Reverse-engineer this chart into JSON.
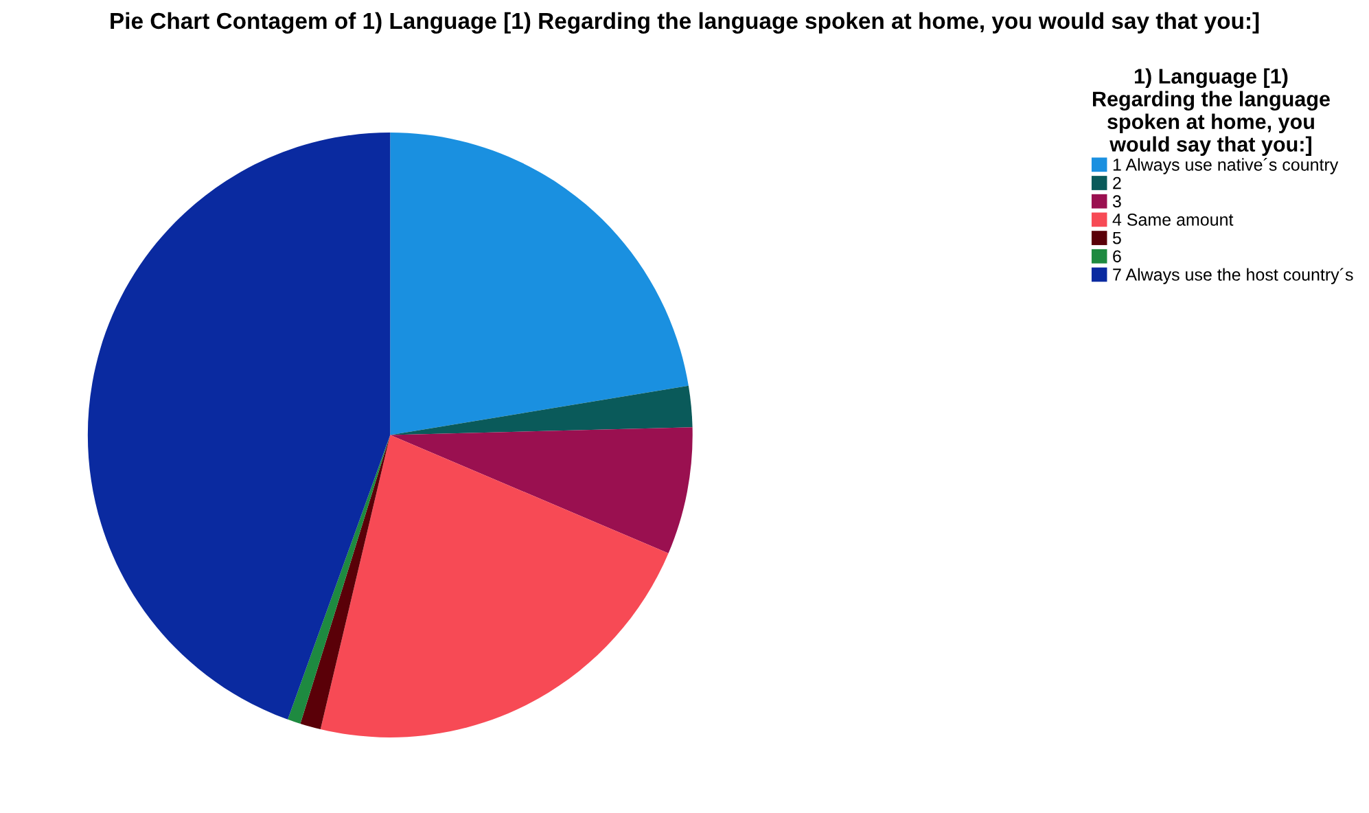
{
  "chart_data": {
    "type": "pie",
    "title": "Pie Chart Contagem of 1) Language [1) Regarding the language spoken at home, you would say that you:]",
    "legend_title": "1) Language [1)\nRegarding the language\nspoken at home, you\nwould say that you:]",
    "categories": [
      "1 Always use native´s country",
      "2",
      "3",
      "4 Same amount",
      "5",
      "6",
      "7 Always use the host country´s"
    ],
    "values": [
      22.4,
      2.2,
      6.8,
      22.3,
      1.1,
      0.7,
      44.5
    ],
    "colors": [
      "#1a90e0",
      "#0a5a5a",
      "#9a1050",
      "#f74a55",
      "#5a0008",
      "#1e8a40",
      "#0a2aa0"
    ],
    "legend": "top right"
  }
}
